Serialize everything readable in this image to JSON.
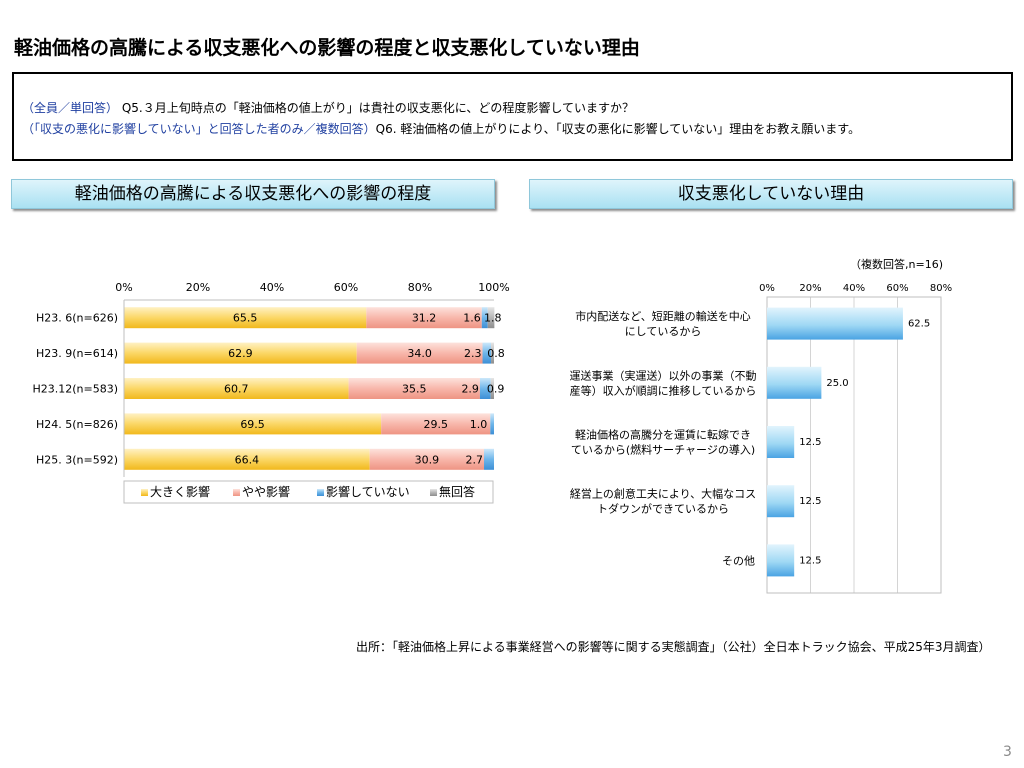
{
  "title": "軽油価格の高騰による収支悪化への影響の程度と収支悪化していない理由",
  "question": {
    "line1_tag": "（全員／単回答）",
    "line1_text": "Q5.３月上旬時点の「軽油価格の値上がり」は貴社の収支悪化に、どの程度影響していますか？",
    "line2_tag": "（「収支の悪化に影響していない」と回答した者のみ／複数回答）",
    "line2_text": "Q6. 軽油価格の値上がりにより、「収支の悪化に影響していない」理由をお教え願います。"
  },
  "left_header": "軽油価格の高騰による収支悪化への影響の程度",
  "right_header": "収支悪化していない理由",
  "source": "出所：「軽油価格上昇による事業経営への影響等に関する実態調査」（公社）全日本トラック協会、平成25年3月調査）",
  "page_number": "3",
  "colors": {
    "yellow": "#f8c64a",
    "pink": "#f5a99c",
    "blue": "#58a6e2",
    "gray": "#a6a6a6",
    "light_blue": "#7cc6ee"
  },
  "chart_data": [
    {
      "type": "bar",
      "orientation": "horizontal",
      "stacked": "percent",
      "categories": [
        "H23. 6(n=626)",
        "H23. 9(n=614)",
        "H23.12(n=583)",
        "H24. 5(n=826)",
        "H25. 3(n=592)"
      ],
      "series": [
        {
          "name": "大きく影響",
          "values": [
            65.5,
            62.9,
            60.7,
            69.5,
            66.4
          ]
        },
        {
          "name": "やや影響",
          "values": [
            31.2,
            34.0,
            35.5,
            29.5,
            30.9
          ]
        },
        {
          "name": "影響していない",
          "values": [
            1.6,
            2.3,
            2.9,
            1.0,
            2.7
          ]
        },
        {
          "name": "無回答",
          "values": [
            1.8,
            0.8,
            0.9,
            0,
            0
          ]
        }
      ],
      "data_labels": [
        [
          "65.5",
          "31.2",
          "1.6",
          "1.8"
        ],
        [
          "62.9",
          "34.0",
          "2.3",
          "0.8"
        ],
        [
          "60.7",
          "35.5",
          "2.9",
          "0.9"
        ],
        [
          "69.5",
          "29.5",
          "1.0",
          ""
        ],
        [
          "66.4",
          "30.9",
          "2.7",
          ""
        ]
      ],
      "xlim": [
        0,
        100
      ],
      "x_ticks": [
        "0%",
        "20%",
        "40%",
        "60%",
        "80%",
        "100%"
      ],
      "axis_position": "top",
      "legend_position": "bottom",
      "grid": false
    },
    {
      "type": "bar",
      "orientation": "horizontal",
      "note": "（複数回答,n=16)",
      "categories": [
        "市内配送など、短距離の輸送を中心|にしているから",
        "運送事業（実運送）以外の事業（不動|産等）収入が順調に推移しているから",
        "軽油価格の高騰分を運賃に転嫁でき|ているから(燃料サーチャージの導入)",
        "経営上の創意工夫により、大幅なコス|トダウンができているから",
        "その他"
      ],
      "values": [
        62.5,
        25.0,
        12.5,
        12.5,
        12.5
      ],
      "data_labels": [
        "62.5",
        "25.0",
        "12.5",
        "12.5",
        "12.5"
      ],
      "xlim": [
        0,
        80
      ],
      "x_ticks": [
        "0%",
        "20%",
        "40%",
        "60%",
        "80%"
      ],
      "axis_position": "top",
      "grid": true
    }
  ]
}
